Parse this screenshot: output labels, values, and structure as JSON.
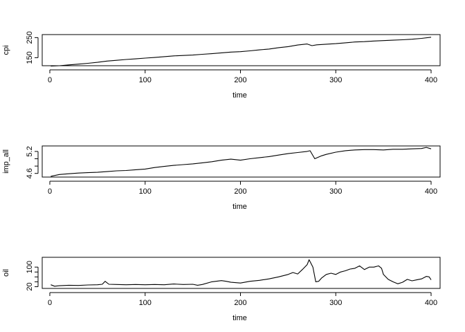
{
  "chart_data": [
    {
      "type": "line",
      "xlabel": "time",
      "ylabel": "cpi",
      "xlim": [
        0,
        400
      ],
      "ylim": [
        110,
        265
      ],
      "xticks": [
        0,
        100,
        200,
        300,
        400
      ],
      "yticks": [
        150,
        250
      ],
      "series": [
        {
          "x": [
            1,
            10,
            20,
            30,
            40,
            50,
            60,
            70,
            80,
            90,
            100,
            110,
            120,
            130,
            140,
            150,
            160,
            170,
            180,
            190,
            200,
            210,
            220,
            230,
            240,
            250,
            260,
            270,
            275,
            280,
            290,
            300,
            310,
            320,
            330,
            340,
            350,
            360,
            370,
            380,
            390,
            400
          ],
          "y": [
            108,
            110,
            114,
            118,
            122,
            127,
            133,
            137,
            141,
            144,
            148,
            151,
            155,
            159,
            161,
            163,
            167,
            170,
            174,
            178,
            180,
            184,
            189,
            193,
            200,
            205,
            213,
            218,
            210,
            214,
            217,
            220,
            224,
            228,
            230,
            233,
            235,
            237,
            239,
            242,
            246,
            252
          ]
        }
      ]
    },
    {
      "type": "line",
      "xlabel": "time",
      "ylabel": "imp_all",
      "xlim": [
        0,
        400
      ],
      "ylim": [
        4.5,
        5.35
      ],
      "xticks": [
        0,
        100,
        200,
        300,
        400
      ],
      "yticks": [
        4.6,
        4.8,
        5.0,
        5.2
      ],
      "ytick_labels": [
        "4.6",
        "",
        "",
        "5.2"
      ],
      "series": [
        {
          "x": [
            1,
            10,
            20,
            30,
            40,
            50,
            60,
            70,
            80,
            90,
            100,
            110,
            120,
            130,
            140,
            150,
            160,
            170,
            180,
            190,
            200,
            210,
            220,
            230,
            240,
            250,
            260,
            270,
            273,
            278,
            285,
            290,
            300,
            310,
            320,
            330,
            340,
            350,
            360,
            370,
            380,
            390,
            395,
            400
          ],
          "y": [
            4.52,
            4.57,
            4.59,
            4.61,
            4.62,
            4.63,
            4.65,
            4.67,
            4.68,
            4.7,
            4.72,
            4.76,
            4.79,
            4.82,
            4.84,
            4.86,
            4.89,
            4.92,
            4.96,
            4.99,
            4.96,
            5.0,
            5.03,
            5.06,
            5.1,
            5.14,
            5.17,
            5.2,
            5.22,
            5.0,
            5.08,
            5.12,
            5.18,
            5.22,
            5.24,
            5.25,
            5.25,
            5.24,
            5.26,
            5.26,
            5.27,
            5.28,
            5.31,
            5.27
          ]
        }
      ]
    },
    {
      "type": "line",
      "xlabel": "time",
      "ylabel": "oil",
      "xlim": [
        0,
        400
      ],
      "ylim": [
        13,
        140
      ],
      "xticks": [
        0,
        100,
        200,
        300,
        400
      ],
      "yticks": [
        20,
        40,
        60,
        80,
        100
      ],
      "ytick_labels": [
        "20",
        "",
        "",
        "",
        "100"
      ],
      "series": [
        {
          "x": [
            1,
            5,
            10,
            20,
            30,
            40,
            50,
            55,
            58,
            62,
            70,
            80,
            90,
            100,
            110,
            120,
            130,
            140,
            150,
            155,
            160,
            170,
            180,
            185,
            190,
            200,
            210,
            220,
            230,
            240,
            250,
            255,
            260,
            265,
            270,
            272,
            276,
            279,
            282,
            285,
            290,
            295,
            300,
            305,
            310,
            315,
            320,
            325,
            330,
            335,
            340,
            345,
            348,
            350,
            355,
            360,
            365,
            370,
            375,
            380,
            385,
            390,
            395,
            398,
            400
          ],
          "y": [
            28,
            22,
            24,
            26,
            25,
            27,
            28,
            30,
            42,
            30,
            29,
            28,
            29,
            28,
            29,
            28,
            31,
            29,
            30,
            26,
            29,
            40,
            45,
            42,
            38,
            35,
            42,
            46,
            52,
            60,
            70,
            78,
            72,
            90,
            110,
            130,
            100,
            40,
            42,
            55,
            70,
            75,
            70,
            80,
            85,
            92,
            95,
            105,
            90,
            100,
            100,
            105,
            95,
            70,
            50,
            40,
            32,
            38,
            50,
            44,
            48,
            52,
            62,
            60,
            48
          ]
        }
      ]
    }
  ]
}
